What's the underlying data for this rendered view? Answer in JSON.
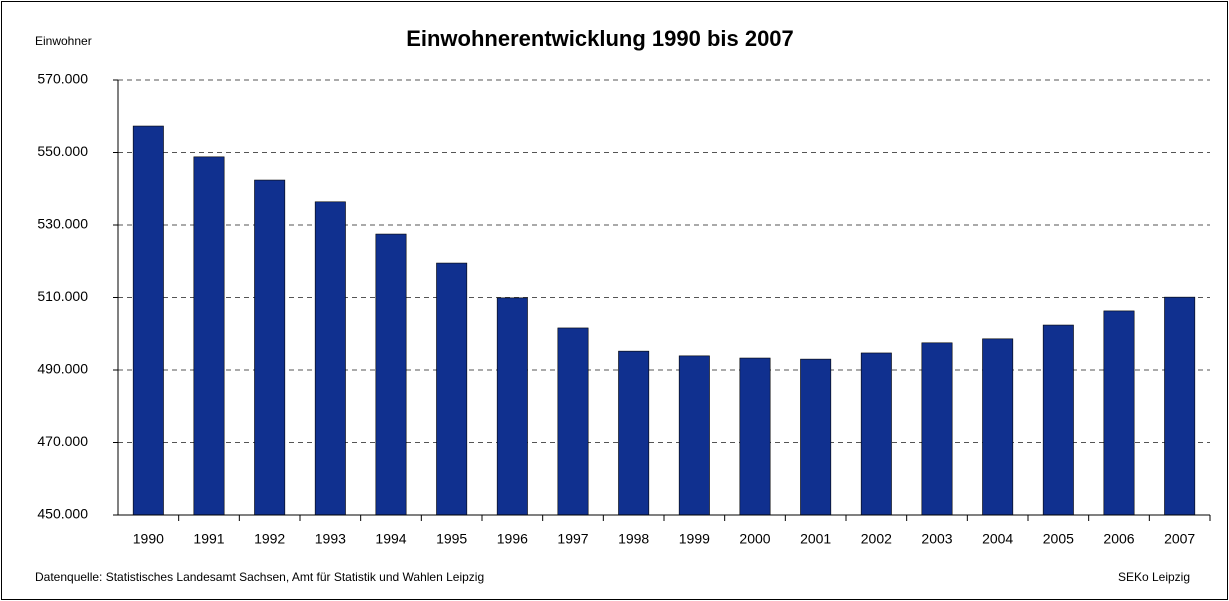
{
  "chart_data": {
    "type": "bar",
    "title": "Einwohnerentwicklung 1990 bis 2007",
    "y_label": "Einwohner",
    "source": "Datenquelle: Statistisches Landesamt Sachsen, Amt für Statistik und Wahlen Leipzig",
    "credit": "SEKo Leipzig",
    "categories": [
      "1990",
      "1991",
      "1992",
      "1993",
      "1994",
      "1995",
      "1996",
      "1997",
      "1998",
      "1999",
      "2000",
      "2001",
      "2002",
      "2003",
      "2004",
      "2005",
      "2006",
      "2007"
    ],
    "values": [
      557300,
      548800,
      542400,
      536400,
      527500,
      519500,
      509900,
      501600,
      495200,
      493900,
      493300,
      493000,
      494700,
      497500,
      498600,
      502400,
      506300,
      510100
    ],
    "color": "#10308f",
    "ylim": [
      450000,
      570000
    ],
    "yticks": [
      {
        "value": 450000,
        "label": "450.000"
      },
      {
        "value": 470000,
        "label": "470.000"
      },
      {
        "value": 490000,
        "label": "490.000"
      },
      {
        "value": 510000,
        "label": "510.000"
      },
      {
        "value": 530000,
        "label": "530.000"
      },
      {
        "value": 550000,
        "label": "550.000"
      },
      {
        "value": 570000,
        "label": "570.000"
      }
    ],
    "grid": true
  }
}
